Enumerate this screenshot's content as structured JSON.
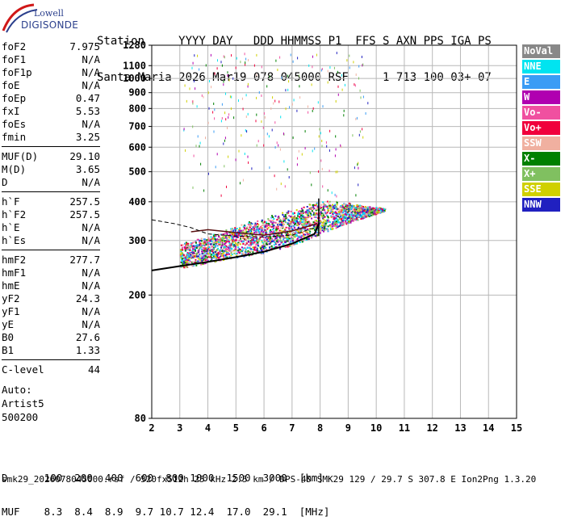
{
  "logo": {
    "line1": "Lowell",
    "line2": "DIGISONDE"
  },
  "header": {
    "labels": "Station     YYYY DAY   DDD HHMMSS P1  FFS S AXN PPS IGA PS",
    "values": "Santa Maria 2026 Mar19 078 045000 RSF     1 713 100 03+ 07"
  },
  "params": [
    {
      "group": [
        {
          "key": "foF2",
          "value": "7.975"
        },
        {
          "key": "foF1",
          "value": "N/A"
        },
        {
          "key": "foF1p",
          "value": "N/A"
        },
        {
          "key": "foE",
          "value": "N/A"
        },
        {
          "key": "foEp",
          "value": "0.47"
        },
        {
          "key": "fxI",
          "value": "5.53"
        },
        {
          "key": "foEs",
          "value": "N/A"
        },
        {
          "key": "fmin",
          "value": "3.25"
        }
      ]
    },
    {
      "group": [
        {
          "key": "MUF(D)",
          "value": "29.10"
        },
        {
          "key": "M(D)",
          "value": "3.65"
        },
        {
          "key": "D",
          "value": "N/A"
        }
      ]
    },
    {
      "group": [
        {
          "key": "h`F",
          "value": "257.5"
        },
        {
          "key": "h`F2",
          "value": "257.5"
        },
        {
          "key": "h`E",
          "value": "N/A"
        },
        {
          "key": "h`Es",
          "value": "N/A"
        }
      ]
    },
    {
      "group": [
        {
          "key": "hmF2",
          "value": "277.7"
        },
        {
          "key": "hmF1",
          "value": "N/A"
        },
        {
          "key": "hmE",
          "value": "N/A"
        },
        {
          "key": "yF2",
          "value": "24.3"
        },
        {
          "key": "yF1",
          "value": "N/A"
        },
        {
          "key": "yE",
          "value": "N/A"
        },
        {
          "key": "B0",
          "value": "27.6"
        },
        {
          "key": "B1",
          "value": "1.33"
        }
      ]
    },
    {
      "group": [
        {
          "key": "C-level",
          "value": "44"
        }
      ]
    }
  ],
  "auto": {
    "line1": "Auto:",
    "line2": "Artist5",
    "line3": "500200"
  },
  "legend": [
    {
      "label": "NoVal",
      "color": "#888888"
    },
    {
      "label": "NNE",
      "color": "#00e4f0"
    },
    {
      "label": "E",
      "color": "#3a9cf5"
    },
    {
      "label": "W",
      "color": "#b000b0"
    },
    {
      "label": "Vo-",
      "color": "#f050a0"
    },
    {
      "label": "Vo+",
      "color": "#f0003c"
    },
    {
      "label": "SSW",
      "color": "#f0b0a0"
    },
    {
      "label": "X-",
      "color": "#008000"
    },
    {
      "label": "X+",
      "color": "#80c060"
    },
    {
      "label": "SSE",
      "color": "#d0d000"
    },
    {
      "label": "NNW",
      "color": "#2020c0"
    }
  ],
  "bottom": {
    "d_line": "D      100  200  400  600  800 1000  1500  3000  [km]",
    "muf_line": "MUF    8.3  8.4  8.9  9.7 10.7 12.4  17.0  29.1  [MHz]"
  },
  "footer": "smk29_2026078045000.rsf / 520fx512h 25 kHz 2.5 km / DPS-4D SMK29 129 / 29.7 S 307.8 E Ion2Png 1.3.20",
  "chart_data": {
    "type": "scatter",
    "title": "",
    "xlabel": "",
    "ylabel": "",
    "xlim": [
      2,
      15
    ],
    "ylim": [
      80,
      1280
    ],
    "x_ticks": [
      2,
      3,
      4,
      5,
      6,
      7,
      8,
      9,
      10,
      11,
      12,
      13,
      14,
      15
    ],
    "y_ticks": [
      80,
      200,
      300,
      400,
      500,
      600,
      700,
      800,
      900,
      1000,
      1100,
      1280
    ],
    "grid": true,
    "y_scale": "log",
    "legend_position": "right",
    "traces": {
      "main_echo_lower": {
        "x": [
          3.0,
          4.0,
          5.0,
          6.0,
          7.0,
          7.8,
          8.5,
          9.5,
          10.3
        ],
        "y": [
          245,
          255,
          265,
          275,
          290,
          310,
          330,
          355,
          375
        ]
      },
      "main_echo_upper": {
        "x": [
          3.0,
          4.0,
          5.0,
          6.0,
          7.0,
          7.8,
          8.5,
          9.5,
          10.3
        ],
        "y": [
          285,
          300,
          320,
          340,
          360,
          385,
          390,
          385,
          380
        ]
      },
      "scaled_profile": {
        "x": [
          2.0,
          3.0,
          4.0,
          5.0,
          6.0,
          7.0,
          7.8,
          7.95
        ],
        "y": [
          240,
          248,
          256,
          265,
          276,
          293,
          315,
          340
        ]
      },
      "profile_upper": {
        "x": [
          3.4,
          4.0,
          5.0,
          6.0,
          7.0,
          7.9
        ],
        "y": [
          320,
          325,
          318,
          312,
          322,
          340
        ]
      },
      "dashed_trace": {
        "x": [
          2.0,
          2.8,
          3.4,
          4.0,
          5.0,
          6.0,
          7.0,
          7.8
        ],
        "y": [
          350,
          340,
          330,
          315,
          310,
          308,
          312,
          330
        ]
      }
    }
  }
}
